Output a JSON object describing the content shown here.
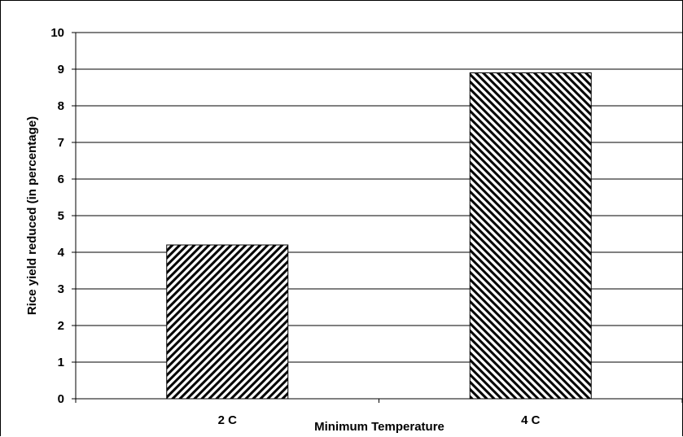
{
  "chart_data": {
    "type": "bar",
    "title": "",
    "xlabel": "Minimum Temperature",
    "ylabel": "Rice yield reduced (in percentage)",
    "categories": [
      "2 C",
      "4 C"
    ],
    "values": [
      4.2,
      8.9
    ],
    "ylim": [
      0,
      10
    ],
    "yticks": [
      0,
      1,
      2,
      3,
      4,
      5,
      6,
      7,
      8,
      9,
      10
    ],
    "grid": true,
    "legend": "none",
    "bar_patterns": [
      "diagonal-forward",
      "diagonal-back"
    ],
    "colors": {
      "bar_stroke": "#000000",
      "hatch": "#000000",
      "background": "#ffffff",
      "grid": "#000000"
    }
  }
}
